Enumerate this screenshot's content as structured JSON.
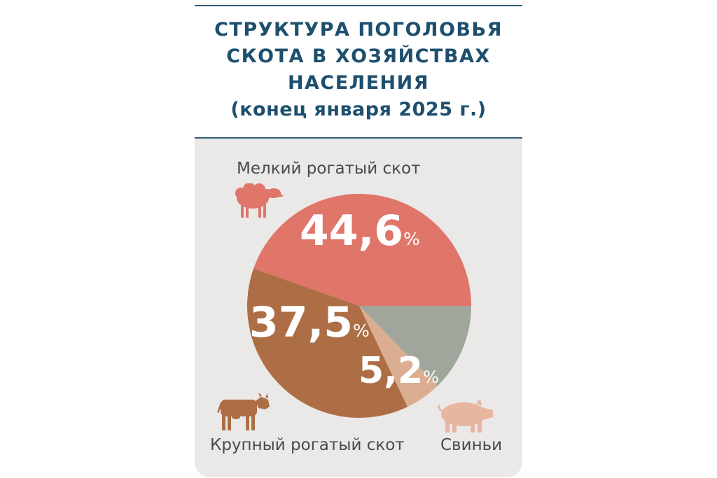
{
  "header": {
    "title_lines": [
      "СТРУКТУРА ПОГОЛОВЬЯ",
      "СКОТА В ХОЗЯЙСТВАХ",
      "НАСЕЛЕНИЯ"
    ],
    "subtitle": "(конец января 2025 г.)"
  },
  "colors": {
    "title": "#1d4f6e",
    "panel": "#ebe9e7",
    "small_cattle": "#e0756a",
    "cattle": "#ad6e45",
    "pigs_slice": "#dbae91",
    "other": "#a1a69d",
    "pig_icon": "#e8b6a0"
  },
  "chart_data": {
    "type": "pie",
    "unit": "%",
    "slices": [
      {
        "name": "Мелкий рогатый скот",
        "value": 44.6,
        "label": "44,6",
        "color": "#e0756a",
        "icon": "sheep-icon"
      },
      {
        "name": "",
        "value": 12.7,
        "label": "",
        "color": "#a1a69d"
      },
      {
        "name": "Свиньи",
        "value": 5.2,
        "label": "5,2",
        "color": "#dbae91",
        "icon": "pig-icon"
      },
      {
        "name": "Крупный рогатый скот",
        "value": 37.5,
        "label": "37,5",
        "color": "#ad6e45",
        "icon": "cow-icon"
      }
    ]
  },
  "labels": {
    "small_cattle": "Мелкий рогатый скот",
    "cattle": "Крупный рогатый скот",
    "pigs": "Свиньи",
    "percent_sign": "%"
  }
}
